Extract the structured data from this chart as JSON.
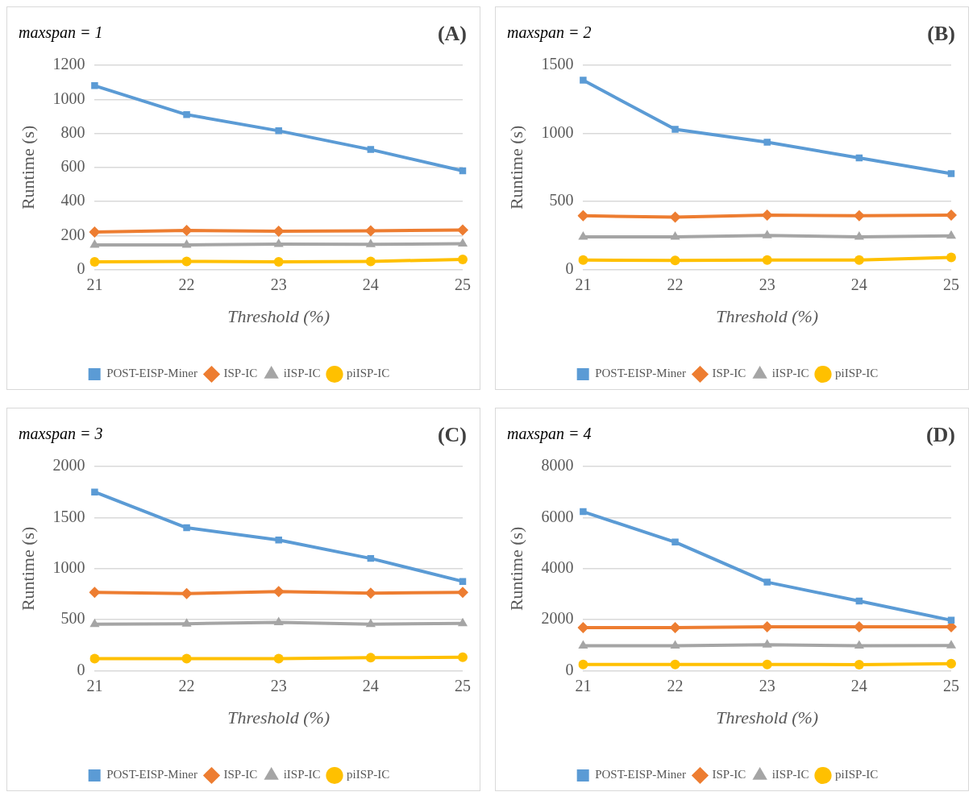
{
  "chart_data": [
    {
      "type": "line",
      "title": "maxspan = 1",
      "annotations": [
        "(A)"
      ],
      "xlabel": "Threshold (%)",
      "ylabel": "Runtime (s)",
      "categories": [
        "21",
        "22",
        "23",
        "24",
        "25"
      ],
      "ylim": [
        0,
        1200
      ],
      "yticks": [
        0,
        200,
        400,
        600,
        800,
        1000,
        1200
      ],
      "grid": "y",
      "legend": "bottom",
      "series": [
        {
          "name": "POST-EISP-Miner",
          "color": "#5b9bd5",
          "marker": "square",
          "values": [
            1080,
            910,
            815,
            705,
            580
          ]
        },
        {
          "name": "ISP-IC",
          "color": "#ed7d31",
          "marker": "diamond",
          "values": [
            220,
            230,
            225,
            228,
            232
          ]
        },
        {
          "name": "iISP-IC",
          "color": "#a5a5a5",
          "marker": "triangle",
          "values": [
            145,
            145,
            150,
            148,
            152
          ]
        },
        {
          "name": "piISP-IC",
          "color": "#ffc000",
          "marker": "circle",
          "values": [
            45,
            48,
            45,
            48,
            60
          ]
        }
      ]
    },
    {
      "type": "line",
      "title": "maxspan = 2",
      "annotations": [
        "(B)"
      ],
      "xlabel": "Threshold (%)",
      "ylabel": "Runtime (s)",
      "categories": [
        "21",
        "22",
        "23",
        "24",
        "25"
      ],
      "ylim": [
        0,
        1500
      ],
      "yticks": [
        0,
        500,
        1000,
        1500
      ],
      "grid": "y",
      "legend": "bottom",
      "series": [
        {
          "name": "POST-EISP-Miner",
          "color": "#5b9bd5",
          "marker": "square",
          "values": [
            1390,
            1030,
            935,
            820,
            705
          ]
        },
        {
          "name": "ISP-IC",
          "color": "#ed7d31",
          "marker": "diamond",
          "values": [
            395,
            385,
            400,
            395,
            400
          ]
        },
        {
          "name": "iISP-IC",
          "color": "#a5a5a5",
          "marker": "triangle",
          "values": [
            240,
            240,
            250,
            240,
            248
          ]
        },
        {
          "name": "piISP-IC",
          "color": "#ffc000",
          "marker": "circle",
          "values": [
            70,
            67,
            70,
            70,
            90
          ]
        }
      ]
    },
    {
      "type": "line",
      "title": "maxspan = 3",
      "annotations": [
        "(C)"
      ],
      "xlabel": "Threshold (%)",
      "ylabel": "Runtime (s)",
      "categories": [
        "21",
        "22",
        "23",
        "24",
        "25"
      ],
      "ylim": [
        0,
        2000
      ],
      "yticks": [
        0,
        500,
        1000,
        1500,
        2000
      ],
      "grid": "y",
      "legend": "bottom",
      "series": [
        {
          "name": "POST-EISP-Miner",
          "color": "#5b9bd5",
          "marker": "square",
          "values": [
            1750,
            1400,
            1280,
            1100,
            875
          ]
        },
        {
          "name": "ISP-IC",
          "color": "#ed7d31",
          "marker": "diamond",
          "values": [
            767,
            756,
            775,
            760,
            767
          ]
        },
        {
          "name": "iISP-IC",
          "color": "#a5a5a5",
          "marker": "triangle",
          "values": [
            457,
            461,
            473,
            457,
            465
          ]
        },
        {
          "name": "piISP-IC",
          "color": "#ffc000",
          "marker": "circle",
          "values": [
            120,
            120,
            120,
            128,
            132
          ]
        }
      ]
    },
    {
      "type": "line",
      "title": "maxspan = 4",
      "annotations": [
        "(D)"
      ],
      "xlabel": "Threshold (%)",
      "ylabel": "Runtime (s)",
      "categories": [
        "21",
        "22",
        "23",
        "24",
        "25"
      ],
      "ylim": [
        0,
        8000
      ],
      "yticks": [
        0,
        2000,
        4000,
        6000,
        8000
      ],
      "grid": "y",
      "legend": "bottom",
      "series": [
        {
          "name": "POST-EISP-Miner",
          "color": "#5b9bd5",
          "marker": "square",
          "values": [
            6230,
            5040,
            3470,
            2730,
            1980
          ]
        },
        {
          "name": "ISP-IC",
          "color": "#ed7d31",
          "marker": "diamond",
          "values": [
            1690,
            1690,
            1720,
            1720,
            1720
          ]
        },
        {
          "name": "iISP-IC",
          "color": "#a5a5a5",
          "marker": "triangle",
          "values": [
            980,
            980,
            1020,
            980,
            990
          ]
        },
        {
          "name": "piISP-IC",
          "color": "#ffc000",
          "marker": "circle",
          "values": [
            250,
            250,
            250,
            240,
            280
          ]
        }
      ]
    }
  ]
}
